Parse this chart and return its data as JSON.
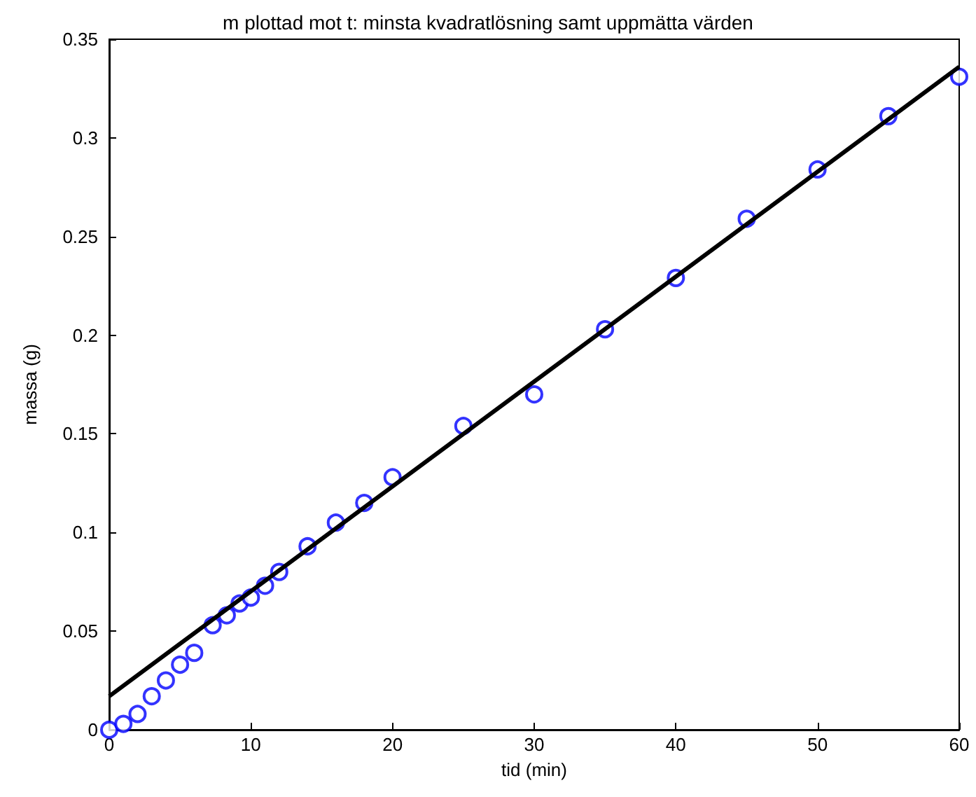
{
  "chart_data": {
    "type": "scatter",
    "title": "m plottad mot t: minsta kvadratlösning samt uppmätta värden",
    "xlabel": "tid (min)",
    "ylabel": "massa (g)",
    "xlim": [
      0,
      60
    ],
    "xticks": [
      0,
      10,
      20,
      30,
      40,
      50,
      60
    ],
    "ylim": [
      0,
      0.35
    ],
    "yticks": [
      0,
      0.05,
      0.1,
      0.15,
      0.2,
      0.25,
      0.3,
      0.35
    ],
    "grid": false,
    "series": [
      {
        "color": "#0000ff",
        "marker": "circle",
        "x": [
          0,
          1,
          2,
          3,
          4,
          5,
          6,
          7.3,
          8.3,
          9.2,
          10,
          11,
          12,
          14,
          16,
          18,
          20,
          25,
          30,
          35,
          40,
          45,
          50,
          55,
          60
        ],
        "values": [
          0,
          0.003,
          0.008,
          0.017,
          0.025,
          0.033,
          0.039,
          0.053,
          0.058,
          0.064,
          0.067,
          0.073,
          0.08,
          0.093,
          0.105,
          0.115,
          0.128,
          0.154,
          0.17,
          0.203,
          0.229,
          0.259,
          0.284,
          0.311,
          0.331
        ]
      },
      {
        "type": "line",
        "color": "#000000",
        "marker": "none",
        "line_style": "solid",
        "x": [
          0,
          60
        ],
        "values": [
          0.017,
          0.336
        ]
      }
    ]
  }
}
